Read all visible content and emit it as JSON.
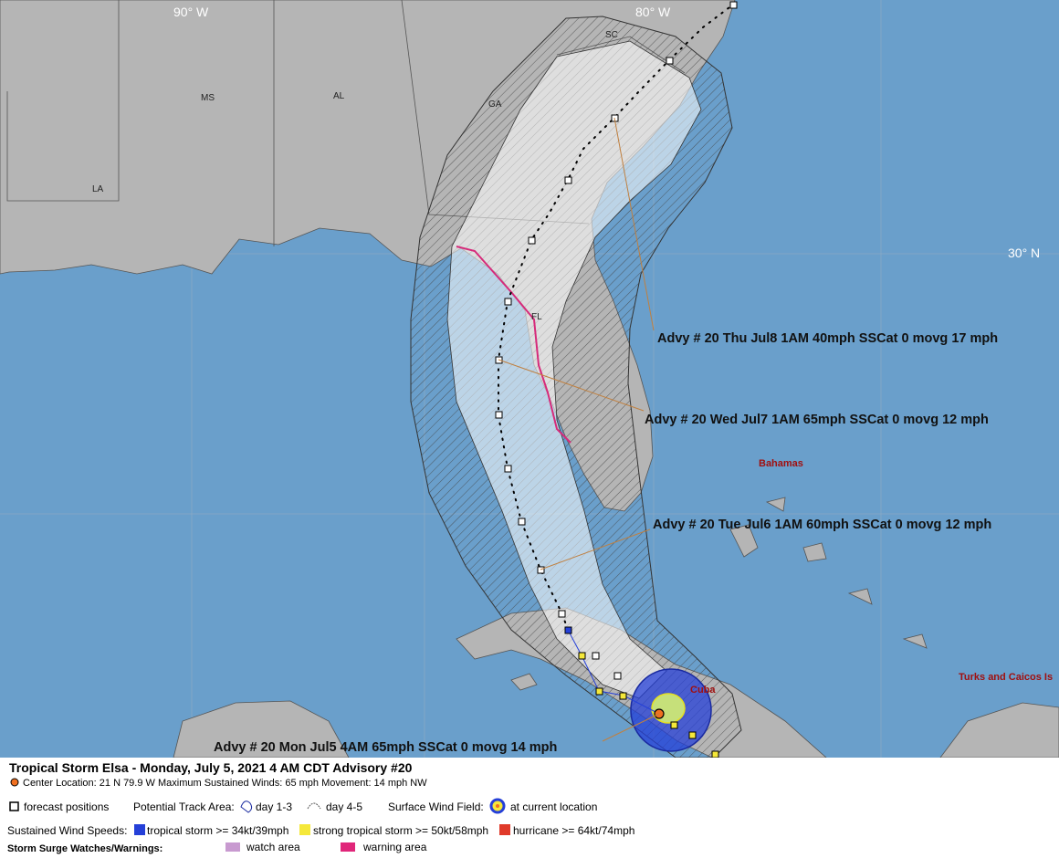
{
  "map": {
    "longitude_labels": [
      "90° W",
      "80° W"
    ],
    "latitude_labels": [
      "30° N"
    ],
    "places": [
      "MS",
      "AL",
      "GA",
      "SC",
      "LA",
      "FL",
      "Bahamas",
      "Cuba",
      "Turks and Caicos Is"
    ],
    "advisories": [
      "Advy # 20 Thu Jul8 1AM  40mph SSCat 0 movg 17 mph",
      "Advy # 20 Wed Jul7 1AM  65mph SSCat 0 movg 12 mph",
      "Advy # 20 Tue Jul6 1AM  60mph SSCat 0 movg 12 mph",
      "Advy # 20 Mon Jul5 4AM  65mph SSCat 0 movg 14 mph"
    ]
  },
  "legend": {
    "title": "Tropical Storm Elsa  -  Monday, July 5, 2021  4 AM CDT   Advisory #20",
    "center": "Center Location: 21 N  79.9 W   Maximum Sustained Winds: 65 mph   Movement: 14 mph NW",
    "forecast_positions": "forecast positions",
    "track_area": "Potential Track Area:",
    "day_1_3": "day 1-3",
    "day_4_5": "day 4-5",
    "wind_field": "Surface Wind Field:",
    "current_location": "at current location",
    "sustained": "Sustained Wind Speeds:",
    "tropical_storm": "tropical storm >= 34kt/39mph",
    "strong_tropical_storm": "strong tropical storm >= 50kt/58mph",
    "hurricane": "hurricane >= 64kt/74mph",
    "surge": "Storm Surge Watches/Warnings:",
    "watch": "watch area",
    "warning": "warning area"
  }
}
